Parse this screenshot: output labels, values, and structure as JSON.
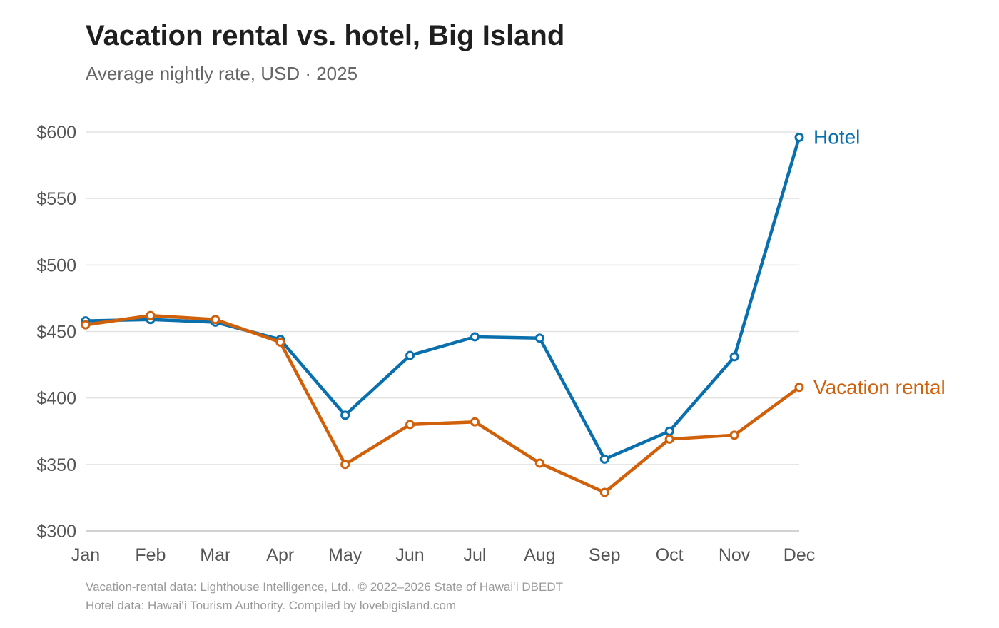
{
  "chart_data": {
    "type": "line",
    "title": "Vacation rental vs. hotel, Big Island",
    "subtitle": "Average nightly rate, USD · 2025",
    "x": [
      "Jan",
      "Feb",
      "Mar",
      "Apr",
      "May",
      "Jun",
      "Jul",
      "Aug",
      "Sep",
      "Oct",
      "Nov",
      "Dec"
    ],
    "y_ticks": [
      "$300",
      "$350",
      "$400",
      "$450",
      "$500",
      "$550",
      "$600"
    ],
    "y_tick_values": [
      300,
      350,
      400,
      450,
      500,
      550,
      600
    ],
    "ylim": [
      300,
      600
    ],
    "grid": true,
    "legend": "direct labels at line ends",
    "series": [
      {
        "name": "Hotel",
        "color": "#0a6fad",
        "values": [
          458,
          459,
          457,
          444,
          387,
          432,
          446,
          445,
          354,
          375,
          431,
          596
        ]
      },
      {
        "name": "Vacation rental",
        "color": "#d1600a",
        "values": [
          455,
          462,
          459,
          442,
          350,
          380,
          382,
          351,
          329,
          369,
          372,
          408
        ]
      }
    ],
    "source_lines": [
      "Vacation-rental data: Lighthouse Intelligence, Ltd., © 2022–2026 State of Hawaiʻi DBEDT",
      "Hotel data: Hawaiʻi Tourism Authority. Compiled by lovebigisland.com"
    ]
  }
}
